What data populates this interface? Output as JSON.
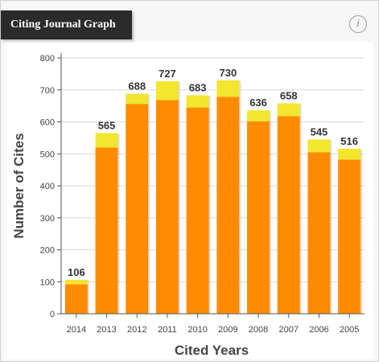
{
  "header": {
    "title": "Citing Journal Graph",
    "info_icon": "i"
  },
  "colors": {
    "base": "#ff8c00",
    "top": "#f2e62e",
    "grid": "#d9d9d9"
  },
  "chart_data": {
    "type": "bar",
    "stacked": true,
    "categories": [
      "2014",
      "2013",
      "2012",
      "2011",
      "2010",
      "2009",
      "2008",
      "2007",
      "2006",
      "2005"
    ],
    "series": [
      {
        "values": [
          92,
          520,
          656,
          668,
          645,
          678,
          602,
          618,
          505,
          482
        ]
      },
      {
        "values": [
          14,
          45,
          32,
          59,
          38,
          52,
          34,
          40,
          40,
          34
        ]
      }
    ],
    "totals": [
      106,
      565,
      688,
      727,
      683,
      730,
      636,
      658,
      545,
      516
    ],
    "xlabel": "Cited Years",
    "ylabel": "Number of Cites",
    "ylim": [
      0,
      800
    ],
    "yticks": [
      0,
      100,
      200,
      300,
      400,
      500,
      600,
      700,
      800
    ],
    "grid": true
  }
}
